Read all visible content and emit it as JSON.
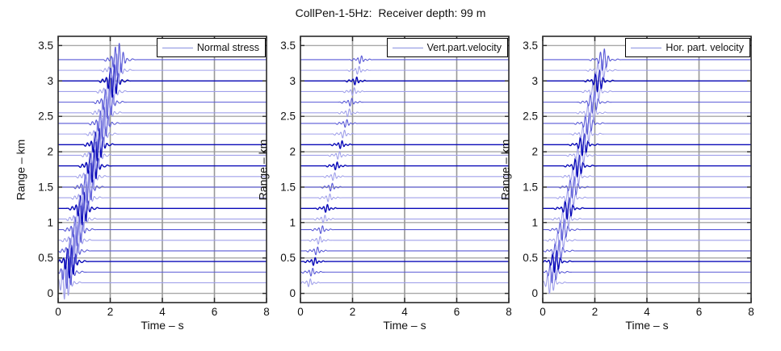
{
  "title": "CollPen-1-5Hz:  Receiver depth: 99 m",
  "chart_data": {
    "type": "line",
    "subtype": "seismic-wiggle-section",
    "title": "CollPen-1-5Hz:  Receiver depth: 99 m",
    "xlabel": "Time – s",
    "ylabel": "Range – km",
    "xlim": [
      0,
      8
    ],
    "ylim": [
      -0.13,
      3.63
    ],
    "x_ticks": [
      0,
      2,
      4,
      6,
      8
    ],
    "y_ticks": [
      0,
      0.5,
      1,
      1.5,
      2,
      2.5,
      3,
      3.5
    ],
    "x_gridlines": [
      2,
      4,
      6
    ],
    "grid": true,
    "legend_position": "top-right-inside",
    "trace_ranges_km": [
      0.15,
      0.3,
      0.45,
      0.6,
      0.75,
      0.9,
      1.05,
      1.2,
      1.35,
      1.5,
      1.65,
      1.8,
      1.95,
      2.1,
      2.25,
      2.4,
      2.55,
      2.7,
      2.85,
      3.0,
      3.15,
      3.3
    ],
    "dark_trace_ranges_km": [
      0.45,
      1.2,
      1.8,
      2.1,
      3.0
    ],
    "arrival_time_rule": "t_arrival = t0 + range / velocity",
    "panels": [
      {
        "legend": "Normal stress",
        "amp_km": 0.24,
        "freq_hz": 6.5,
        "sigma_s": 0.21,
        "t0_s": 0.18,
        "velocity_km_s": 1.55,
        "pre": {
          "dt_s": 0.45,
          "scale": 0.12,
          "freq_hz": 4.5,
          "sigma_s": 0.08
        },
        "tail": {
          "dt_s": 0.5,
          "scale": 0.07,
          "freq_hz": 4.0,
          "sigma_s": 0.1
        }
      },
      {
        "legend": "Vert.part.velocity",
        "amp_km": 0.06,
        "freq_hz": 6.5,
        "sigma_s": 0.12,
        "t0_s": 0.25,
        "velocity_km_s": 1.6,
        "pre": {
          "dt_s": 0.3,
          "scale": 0.3,
          "freq_hz": 5.0,
          "sigma_s": 0.09
        },
        "tail": {
          "dt_s": 0.3,
          "scale": 0.2,
          "freq_hz": 5.0,
          "sigma_s": 0.09
        }
      },
      {
        "legend": "Hor. part. velocity",
        "amp_km": 0.16,
        "freq_hz": 6.5,
        "sigma_s": 0.18,
        "t0_s": 0.2,
        "velocity_km_s": 1.55,
        "pre": {
          "dt_s": 0.45,
          "scale": 0.12,
          "freq_hz": 4.5,
          "sigma_s": 0.08
        },
        "tail": {
          "dt_s": 0.5,
          "scale": 0.08,
          "freq_hz": 4.0,
          "sigma_s": 0.1
        }
      }
    ],
    "colors": {
      "trace_light": "#a0a0ea",
      "trace_medium": "#5858d6",
      "trace_dark": "#0a0ab8",
      "grid_vertical": "#989898",
      "grid_horizontal": "#a8a8a8",
      "axis": "#2a2a2a",
      "legend_line": "#8890e0"
    }
  }
}
